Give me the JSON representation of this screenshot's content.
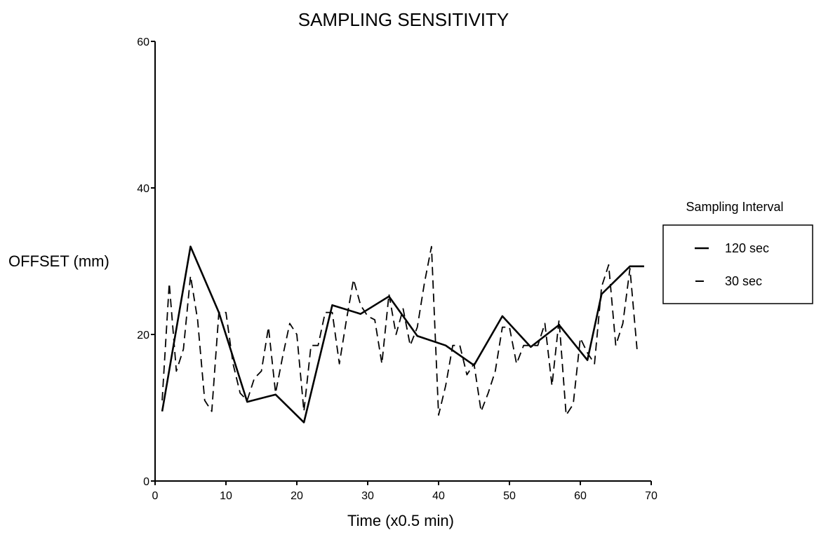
{
  "chart_data": {
    "type": "line",
    "title": "SAMPLING SENSITIVITY",
    "xlabel": "Time (x0.5 min)",
    "ylabel": "OFFSET (mm)",
    "xlim": [
      0,
      70
    ],
    "ylim": [
      0,
      60
    ],
    "xticks": [
      0,
      10,
      20,
      30,
      40,
      50,
      60,
      70
    ],
    "yticks": [
      0,
      20,
      40,
      60
    ],
    "grid": false,
    "legend": {
      "title": "Sampling Interval",
      "placement": "right",
      "entries": [
        "120 sec",
        "30 sec"
      ]
    },
    "series": [
      {
        "name": "120 sec",
        "style": "solid",
        "x": [
          1,
          5,
          9,
          13,
          17,
          21,
          25,
          29,
          33,
          37,
          41,
          45,
          49,
          53,
          57,
          61,
          63,
          67,
          69
        ],
        "y": [
          9.5,
          32,
          23,
          10.8,
          11.8,
          8,
          24,
          22.8,
          25.2,
          19.8,
          18.5,
          15.8,
          22.5,
          18.3,
          21.3,
          16.5,
          25.5,
          29.3,
          29.3
        ]
      },
      {
        "name": "30 sec",
        "style": "dashed",
        "x": [
          1,
          2,
          3,
          4,
          5,
          6,
          7,
          8,
          9,
          10,
          11,
          12,
          13,
          14,
          15,
          16,
          17,
          18,
          19,
          20,
          21,
          22,
          23,
          24,
          25,
          26,
          27,
          28,
          29,
          30,
          31,
          32,
          33,
          34,
          35,
          36,
          37,
          38,
          39,
          40,
          41,
          42,
          43,
          44,
          45,
          46,
          47,
          48,
          49,
          50,
          51,
          52,
          53,
          54,
          55,
          56,
          57,
          58,
          59,
          60,
          61,
          62,
          63,
          64,
          65,
          66,
          67,
          68
        ],
        "y": [
          11,
          27,
          15,
          18,
          28,
          22,
          11,
          9.5,
          23,
          23,
          16,
          12,
          11,
          14,
          15,
          21,
          12,
          17,
          21.5,
          20,
          9.5,
          18.5,
          18.5,
          23,
          23,
          16,
          22,
          27.5,
          24,
          22.5,
          22,
          16,
          25.5,
          20,
          23.5,
          18.5,
          21,
          27,
          32,
          9,
          13,
          18.5,
          18.5,
          14.5,
          16,
          9.5,
          12,
          15,
          21,
          21,
          16,
          18.5,
          18.5,
          18.5,
          21.5,
          13,
          22,
          9,
          10.5,
          19.5,
          17.5,
          16,
          26.5,
          29.5,
          18.5,
          21.5,
          29,
          18
        ]
      }
    ]
  }
}
